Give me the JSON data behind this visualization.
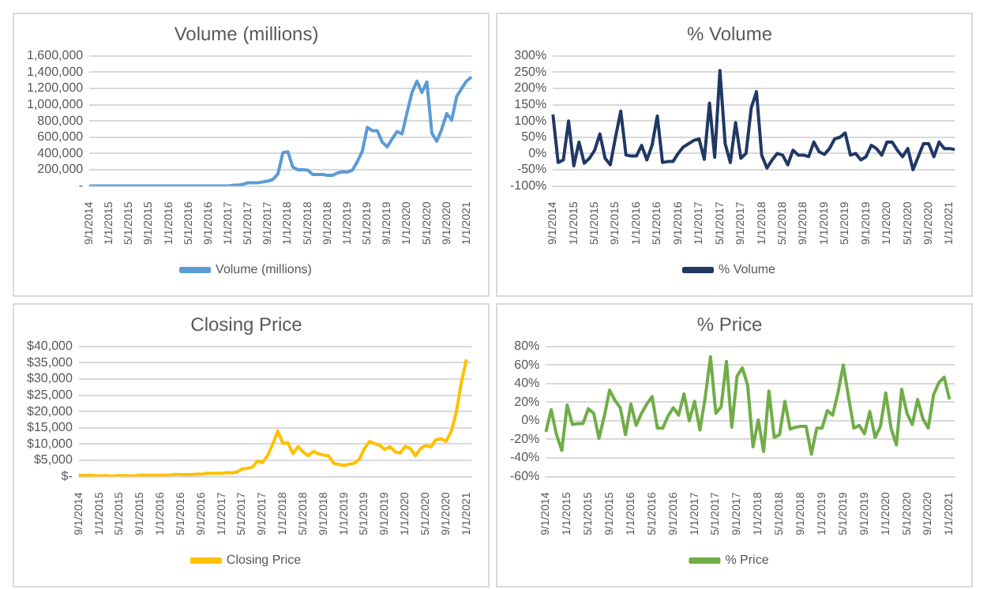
{
  "chart_data": [
    {
      "type": "line",
      "title": "Volume (millions)",
      "categories": [
        "9/1/2014",
        null,
        null,
        null,
        "1/1/2015",
        null,
        null,
        null,
        "5/1/2015",
        null,
        null,
        null,
        "9/1/2015",
        null,
        null,
        null,
        "1/1/2016",
        null,
        null,
        null,
        "5/1/2016",
        null,
        null,
        null,
        "9/1/2016",
        null,
        null,
        null,
        "1/1/2017",
        null,
        null,
        null,
        "5/1/2017",
        null,
        null,
        null,
        "9/1/2017",
        null,
        null,
        null,
        "1/1/2018",
        null,
        null,
        null,
        "5/1/2018",
        null,
        null,
        null,
        "9/1/2018",
        null,
        null,
        null,
        "1/1/2019",
        null,
        null,
        null,
        "5/1/2019",
        null,
        null,
        null,
        "9/1/2019",
        null,
        null,
        null,
        "1/1/2020",
        null,
        null,
        null,
        "5/1/2020",
        null,
        null,
        null,
        "9/1/2020",
        null,
        null,
        null,
        "1/1/2021",
        null
      ],
      "series": [
        {
          "name": "Volume (millions)",
          "color": "#5b9bd5",
          "values": [
            0,
            0,
            0,
            0,
            0,
            0,
            0,
            0,
            0,
            0,
            0,
            0,
            0,
            0,
            0,
            0,
            0,
            0,
            0,
            0,
            0,
            0,
            0,
            0,
            0,
            0,
            0,
            0,
            0,
            10000,
            10000,
            20000,
            40000,
            40000,
            40000,
            50000,
            60000,
            80000,
            150000,
            410000,
            420000,
            230000,
            200000,
            200000,
            195000,
            140000,
            140000,
            140000,
            130000,
            130000,
            160000,
            175000,
            170000,
            195000,
            300000,
            430000,
            720000,
            680000,
            680000,
            540000,
            480000,
            580000,
            670000,
            640000,
            900000,
            1150000,
            1290000,
            1150000,
            1280000,
            650000,
            550000,
            700000,
            890000,
            810000,
            1100000,
            1200000,
            1290000,
            1340000
          ]
        }
      ],
      "ylim": [
        0,
        1600000
      ],
      "yticks": [
        {
          "value": 0,
          "label": "-"
        },
        {
          "value": 200000,
          "label": "200,000"
        },
        {
          "value": 400000,
          "label": "400,000"
        },
        {
          "value": 600000,
          "label": "600,000"
        },
        {
          "value": 800000,
          "label": "800,000"
        },
        {
          "value": 1000000,
          "label": "1,000,000"
        },
        {
          "value": 1200000,
          "label": "1,200,000"
        },
        {
          "value": 1400000,
          "label": "1,400,000"
        },
        {
          "value": 1600000,
          "label": "1,600,000"
        }
      ],
      "grid": "y",
      "legend": "bottom"
    },
    {
      "type": "line",
      "title": "% Volume",
      "categories": [
        "9/1/2014",
        null,
        null,
        null,
        "1/1/2015",
        null,
        null,
        null,
        "5/1/2015",
        null,
        null,
        null,
        "9/1/2015",
        null,
        null,
        null,
        "1/1/2016",
        null,
        null,
        null,
        "5/1/2016",
        null,
        null,
        null,
        "9/1/2016",
        null,
        null,
        null,
        "1/1/2017",
        null,
        null,
        null,
        "5/1/2017",
        null,
        null,
        null,
        "9/1/2017",
        null,
        null,
        null,
        "1/1/2018",
        null,
        null,
        null,
        "5/1/2018",
        null,
        null,
        null,
        "9/1/2018",
        null,
        null,
        null,
        "1/1/2019",
        null,
        null,
        null,
        "5/1/2019",
        null,
        null,
        null,
        "9/1/2019",
        null,
        null,
        null,
        "1/1/2020",
        null,
        null,
        null,
        "5/1/2020",
        null,
        null,
        null,
        "9/1/2020",
        null,
        null,
        null,
        "1/1/2021",
        null
      ],
      "series": [
        {
          "name": "% Volume",
          "color": "#203864",
          "values": [
            120,
            -28,
            -20,
            100,
            -38,
            35,
            -30,
            -15,
            10,
            60,
            -15,
            -35,
            50,
            130,
            -5,
            -8,
            -8,
            25,
            -20,
            25,
            115,
            -28,
            -25,
            -25,
            0,
            20,
            30,
            40,
            45,
            -18,
            155,
            -12,
            255,
            30,
            -28,
            95,
            -15,
            0,
            140,
            190,
            -5,
            -45,
            -20,
            0,
            -5,
            -35,
            10,
            -5,
            -5,
            -10,
            35,
            5,
            -3,
            15,
            45,
            50,
            63,
            -5,
            0,
            -20,
            -10,
            25,
            15,
            -5,
            35,
            35,
            10,
            -10,
            15,
            -50,
            -10,
            30,
            30,
            -10,
            35,
            15,
            15,
            12
          ]
        }
      ],
      "ylim": [
        -100,
        300
      ],
      "yticks": [
        {
          "value": -100,
          "label": "-100%"
        },
        {
          "value": -50,
          "label": "-50%"
        },
        {
          "value": 0,
          "label": "0%"
        },
        {
          "value": 50,
          "label": "50%"
        },
        {
          "value": 100,
          "label": "100%"
        },
        {
          "value": 150,
          "label": "150%"
        },
        {
          "value": 200,
          "label": "200%"
        },
        {
          "value": 250,
          "label": "250%"
        },
        {
          "value": 300,
          "label": "300%"
        }
      ],
      "grid": "y",
      "legend": "bottom"
    },
    {
      "type": "line",
      "title": "Closing Price",
      "categories": [
        "9/1/2014",
        null,
        null,
        null,
        "1/1/2015",
        null,
        null,
        null,
        "5/1/2015",
        null,
        null,
        null,
        "9/1/2015",
        null,
        null,
        null,
        "1/1/2016",
        null,
        null,
        null,
        "5/1/2016",
        null,
        null,
        null,
        "9/1/2016",
        null,
        null,
        null,
        "1/1/2017",
        null,
        null,
        null,
        "5/1/2017",
        null,
        null,
        null,
        "9/1/2017",
        null,
        null,
        null,
        "1/1/2018",
        null,
        null,
        null,
        "5/1/2018",
        null,
        null,
        null,
        "9/1/2018",
        null,
        null,
        null,
        "1/1/2019",
        null,
        null,
        null,
        "5/1/2019",
        null,
        null,
        null,
        "9/1/2019",
        null,
        null,
        null,
        "1/1/2020",
        null,
        null,
        null,
        "5/1/2020",
        null,
        null,
        null,
        "9/1/2020",
        null,
        null,
        null,
        "1/1/2021",
        null
      ],
      "series": [
        {
          "name": "Closing Price",
          "color": "#ffc000",
          "values": [
            400,
            300,
            400,
            300,
            200,
            300,
            200,
            200,
            300,
            300,
            200,
            200,
            400,
            400,
            400,
            400,
            400,
            400,
            500,
            700,
            600,
            600,
            600,
            700,
            700,
            1000,
            1000,
            1000,
            1000,
            1200,
            1100,
            1400,
            2300,
            2500,
            2900,
            4700,
            4300,
            6400,
            9900,
            14000,
            10200,
            10300,
            7000,
            9200,
            7500,
            6400,
            7700,
            7000,
            6600,
            6300,
            4000,
            3700,
            3400,
            3800,
            4100,
            5300,
            8600,
            10800,
            10100,
            9600,
            8300,
            9200,
            7600,
            7200,
            9300,
            8600,
            6400,
            8600,
            9500,
            9100,
            11300,
            11600,
            10800,
            13800,
            19700,
            29000,
            36000,
            null
          ]
        }
      ],
      "ylim": [
        0,
        40000
      ],
      "yticks": [
        {
          "value": 0,
          "label": "$-"
        },
        {
          "value": 5000,
          "label": "$5,000"
        },
        {
          "value": 10000,
          "label": "$10,000"
        },
        {
          "value": 15000,
          "label": "$15,000"
        },
        {
          "value": 20000,
          "label": "$20,000"
        },
        {
          "value": 25000,
          "label": "$25,000"
        },
        {
          "value": 30000,
          "label": "$30,000"
        },
        {
          "value": 35000,
          "label": "$35,000"
        },
        {
          "value": 40000,
          "label": "$40,000"
        }
      ],
      "grid": "y",
      "legend": "bottom"
    },
    {
      "type": "line",
      "title": "% Price",
      "categories": [
        "9/1/2014",
        null,
        null,
        null,
        "1/1/2015",
        null,
        null,
        null,
        "5/1/2015",
        null,
        null,
        null,
        "9/1/2015",
        null,
        null,
        null,
        "1/1/2016",
        null,
        null,
        null,
        "5/1/2016",
        null,
        null,
        null,
        "9/1/2016",
        null,
        null,
        null,
        "1/1/2017",
        null,
        null,
        null,
        "5/1/2017",
        null,
        null,
        null,
        "9/1/2017",
        null,
        null,
        null,
        "1/1/2018",
        null,
        null,
        null,
        "5/1/2018",
        null,
        null,
        null,
        "9/1/2018",
        null,
        null,
        null,
        "1/1/2019",
        null,
        null,
        null,
        "5/1/2019",
        null,
        null,
        null,
        "9/1/2019",
        null,
        null,
        null,
        "1/1/2020",
        null,
        null,
        null,
        "5/1/2020",
        null,
        null,
        null,
        "9/1/2020",
        null,
        null,
        null,
        "1/1/2021",
        null
      ],
      "series": [
        {
          "name": "% Price",
          "color": "#70ad47",
          "values": [
            -12,
            12,
            -15,
            -32,
            17,
            -4,
            -3,
            -3,
            13,
            8,
            -19,
            5,
            33,
            22,
            14,
            -15,
            18,
            -5,
            8,
            18,
            26,
            -8,
            -8,
            5,
            14,
            6,
            29,
            0,
            21,
            -10,
            25,
            69,
            8,
            15,
            64,
            -7,
            48,
            57,
            38,
            -28,
            1,
            -33,
            32,
            -18,
            -15,
            21,
            -9,
            -7,
            -6,
            -6,
            -36,
            -8,
            -8,
            11,
            6,
            30,
            60,
            25,
            -8,
            -5,
            -14,
            10,
            -18,
            -6,
            30,
            -8,
            -26,
            34,
            8,
            -4,
            23,
            2,
            -8,
            28,
            41,
            47,
            23,
            null
          ]
        }
      ],
      "ylim": [
        -60,
        80
      ],
      "yticks": [
        {
          "value": -60,
          "label": "-60%"
        },
        {
          "value": -40,
          "label": "-40%"
        },
        {
          "value": -20,
          "label": "-20%"
        },
        {
          "value": 0,
          "label": "0%"
        },
        {
          "value": 20,
          "label": "20%"
        },
        {
          "value": 40,
          "label": "40%"
        },
        {
          "value": 60,
          "label": "60%"
        },
        {
          "value": 80,
          "label": "80%"
        }
      ],
      "grid": "y",
      "legend": "bottom"
    }
  ]
}
